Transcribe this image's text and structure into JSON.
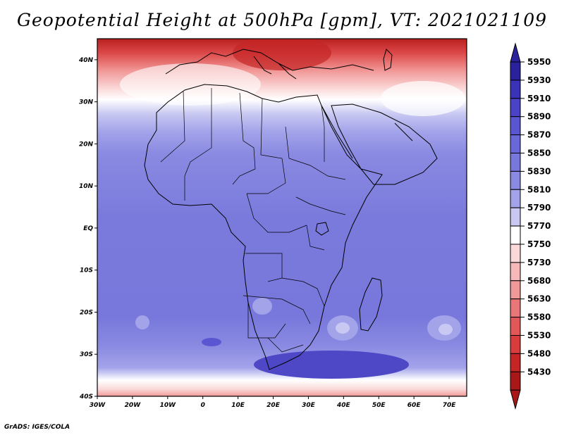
{
  "title": "Geopotential Height at 500hPa [gpm], VT: 2021021109",
  "footer": "GrADS: IGES/COLA",
  "map": {
    "lon_ticks": [
      "30W",
      "20W",
      "10W",
      "0",
      "10E",
      "20E",
      "30E",
      "40E",
      "50E",
      "60E",
      "70E"
    ],
    "lat_ticks": [
      "40N",
      "30N",
      "20N",
      "10N",
      "EQ",
      "10S",
      "20S",
      "30S",
      "40S"
    ],
    "lon_range": [
      -30,
      75
    ],
    "lat_range": [
      -40,
      45
    ]
  },
  "colorbar": {
    "levels": [
      "5950",
      "5930",
      "5910",
      "5890",
      "5870",
      "5850",
      "5830",
      "5810",
      "5790",
      "5770",
      "5750",
      "5730",
      "5680",
      "5630",
      "5580",
      "5530",
      "5480",
      "5430"
    ],
    "colors": [
      "#2a229c",
      "#3a32b8",
      "#4a43c8",
      "#5a56d2",
      "#6a68d8",
      "#7878dc",
      "#8a8ae2",
      "#a3a3ea",
      "#c8c8f2",
      "#ffffff",
      "#fbd9d9",
      "#f6b8b8",
      "#f19898",
      "#ea7777",
      "#e25858",
      "#d83c3c",
      "#c52525",
      "#a91818"
    ]
  }
}
